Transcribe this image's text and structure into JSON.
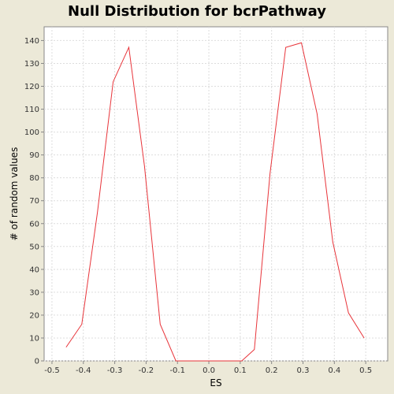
{
  "chart_data": {
    "type": "line",
    "title": "Null Distribution for bcrPathway",
    "xlabel": "ES",
    "ylabel": "# of random values",
    "xlim": [
      -0.525,
      0.57
    ],
    "ylim": [
      0,
      146
    ],
    "x_ticks": [
      "-0.5",
      "-0.4",
      "-0.3",
      "-0.2",
      "-0.1",
      "0.0",
      "0.1",
      "0.2",
      "0.3",
      "0.4",
      "0.5"
    ],
    "y_ticks": [
      "0",
      "10",
      "20",
      "30",
      "40",
      "50",
      "60",
      "70",
      "80",
      "90",
      "100",
      "110",
      "120",
      "130",
      "140"
    ],
    "grid": true,
    "series": [
      {
        "color": "#E8343A",
        "x": [
          -0.455,
          -0.405,
          -0.355,
          -0.305,
          -0.255,
          -0.205,
          -0.155,
          -0.105,
          -0.055,
          0.005,
          0.055,
          0.105,
          0.145,
          0.195,
          0.245,
          0.295,
          0.345,
          0.395,
          0.445,
          0.495
        ],
        "y": [
          6,
          16,
          65,
          122,
          137,
          85,
          16,
          0,
          0,
          0,
          0,
          0,
          5,
          82,
          137,
          139,
          108,
          52,
          21,
          10
        ]
      }
    ]
  }
}
